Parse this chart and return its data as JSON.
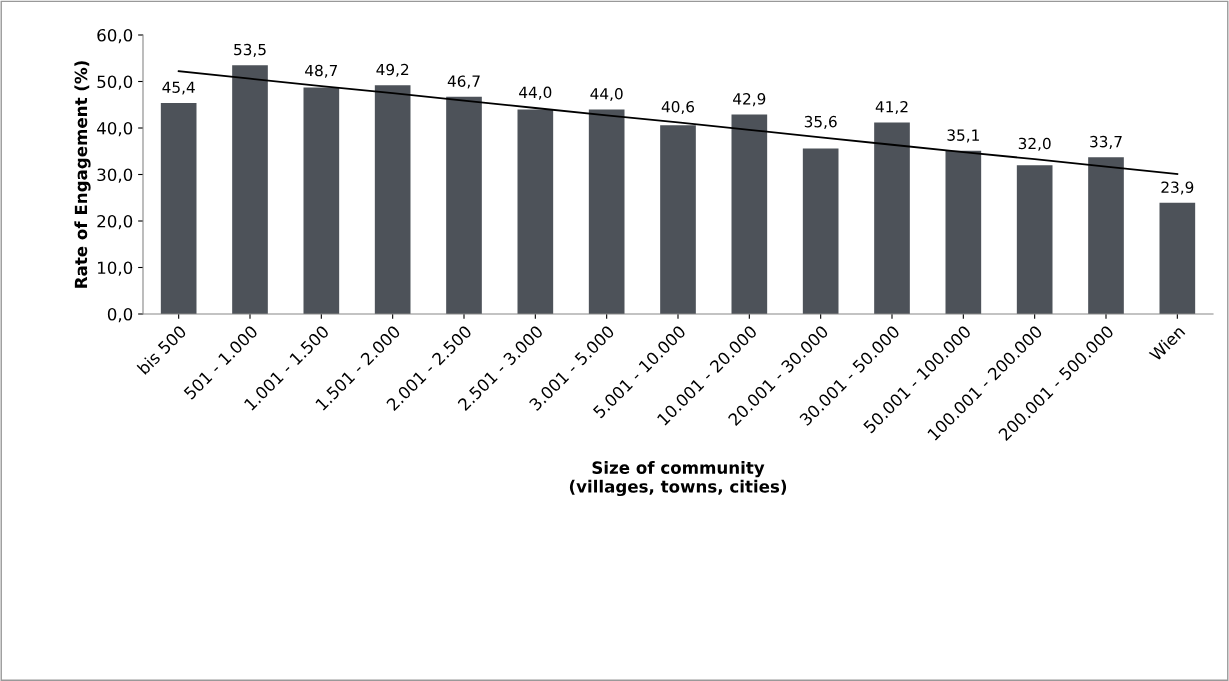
{
  "chart_data": {
    "type": "bar",
    "xlabel": "Size of community\n(villages, towns, cities)",
    "ylabel": "Rate of Engagement (%)",
    "categories": [
      "bis 500",
      "501 - 1.000",
      "1.001 - 1.500",
      "1.501 - 2.000",
      "2.001 - 2.500",
      "2.501 - 3.000",
      "3.001 - 5.000",
      "5.001 - 10.000",
      "10.001 - 20.000",
      "20.001 - 30.000",
      "30.001 - 50.000",
      "50.001 - 100.000",
      "100.001 - 200.000",
      "200.001 - 500.000",
      "Wien"
    ],
    "series": [
      {
        "color": "#4d5259",
        "values": [
          45.4,
          53.5,
          48.7,
          49.2,
          46.7,
          44.0,
          44.0,
          40.6,
          42.9,
          35.6,
          41.2,
          35.1,
          32.0,
          33.7,
          23.9
        ],
        "value_labels": [
          "45,4",
          "53,5",
          "48,7",
          "49,2",
          "46,7",
          "44,0",
          "44,0",
          "40,6",
          "42,9",
          "35,6",
          "41,2",
          "35,1",
          "32,0",
          "33,7",
          "23,9"
        ]
      },
      {
        "type": "line",
        "color": "#000000",
        "values": [
          52.2,
          50.6,
          49.0,
          47.5,
          45.9,
          44.3,
          42.7,
          41.2,
          39.6,
          38.0,
          36.4,
          34.8,
          33.3,
          31.7,
          30.1
        ]
      }
    ],
    "ylim": [
      0,
      60
    ],
    "yticks": [
      {
        "value": 0,
        "label": "0,0"
      },
      {
        "value": 10,
        "label": "10,0"
      },
      {
        "value": 20,
        "label": "20,0"
      },
      {
        "value": 30,
        "label": "30,0"
      },
      {
        "value": 40,
        "label": "40,0"
      },
      {
        "value": 50,
        "label": "50,0"
      },
      {
        "value": 60,
        "label": "60,0"
      }
    ],
    "grid": false,
    "marker": "none",
    "line_style": "solid"
  }
}
